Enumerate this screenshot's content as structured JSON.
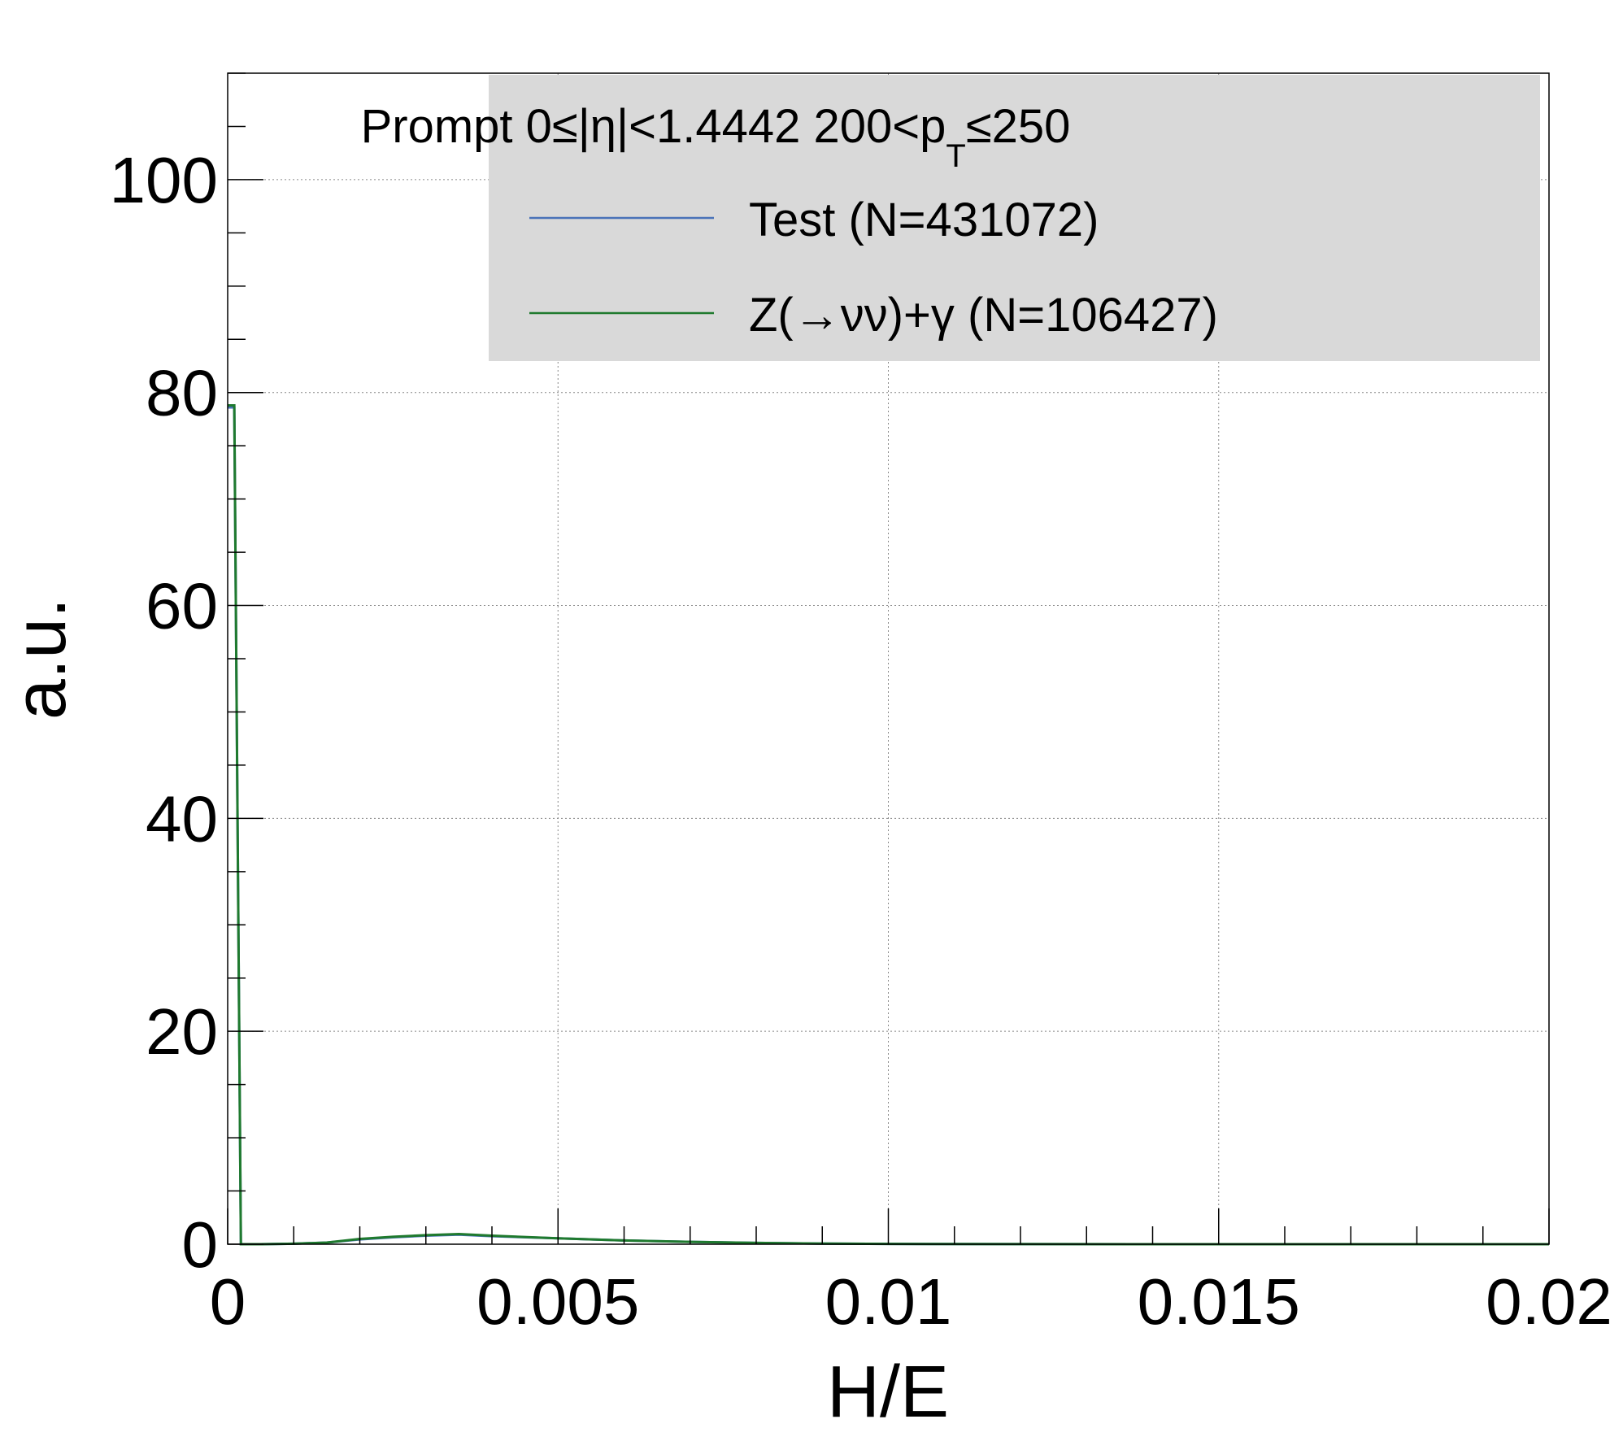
{
  "chart_data": {
    "type": "line",
    "xlabel": "H/E",
    "ylabel": "a.u.",
    "xlim": [
      0,
      0.02
    ],
    "ylim": [
      0,
      110
    ],
    "x_ticks": [
      0,
      0.005,
      0.01,
      0.015,
      0.02
    ],
    "x_tick_labels": [
      "0",
      "0.005",
      "0.01",
      "0.015",
      "0.02"
    ],
    "y_ticks": [
      0,
      20,
      40,
      60,
      80,
      100
    ],
    "y_tick_labels": [
      "0",
      "20",
      "40",
      "60",
      "80",
      "100"
    ],
    "grid": true,
    "legend": {
      "placement": "top-right",
      "header": {
        "main": "Prompt  0≤|η|<1.4442  200<p",
        "subscript": "T",
        "tail": "≤250"
      },
      "entries": [
        {
          "label": "Test (N=431072)",
          "color": "#4a72b8"
        },
        {
          "label": "Z(→νν)+γ (N=106427)",
          "color": "#1f7a2e"
        }
      ]
    },
    "series": [
      {
        "name": "Test (N=431072)",
        "color": "#4a72b8",
        "x": [
          0,
          0.0001,
          0.0002,
          0.0005,
          0.001,
          0.0015,
          0.002,
          0.0025,
          0.003,
          0.0035,
          0.004,
          0.005,
          0.006,
          0.007,
          0.008,
          0.009,
          0.01,
          0.012,
          0.015,
          0.02
        ],
        "values": [
          78.6,
          78.6,
          0,
          0,
          0.05,
          0.15,
          0.45,
          0.65,
          0.8,
          0.9,
          0.75,
          0.55,
          0.35,
          0.22,
          0.12,
          0.06,
          0.03,
          0.01,
          0.0,
          0.0
        ]
      },
      {
        "name": "Z(→νν)+γ (N=106427)",
        "color": "#1f7a2e",
        "x": [
          0,
          0.0001,
          0.0002,
          0.0005,
          0.001,
          0.0015,
          0.002,
          0.0025,
          0.003,
          0.0035,
          0.004,
          0.005,
          0.006,
          0.007,
          0.008,
          0.009,
          0.01,
          0.012,
          0.015,
          0.02
        ],
        "values": [
          78.8,
          78.8,
          0,
          0,
          0.05,
          0.15,
          0.5,
          0.7,
          0.85,
          0.95,
          0.8,
          0.55,
          0.35,
          0.22,
          0.12,
          0.06,
          0.03,
          0.01,
          0.0,
          0.0
        ]
      }
    ]
  }
}
